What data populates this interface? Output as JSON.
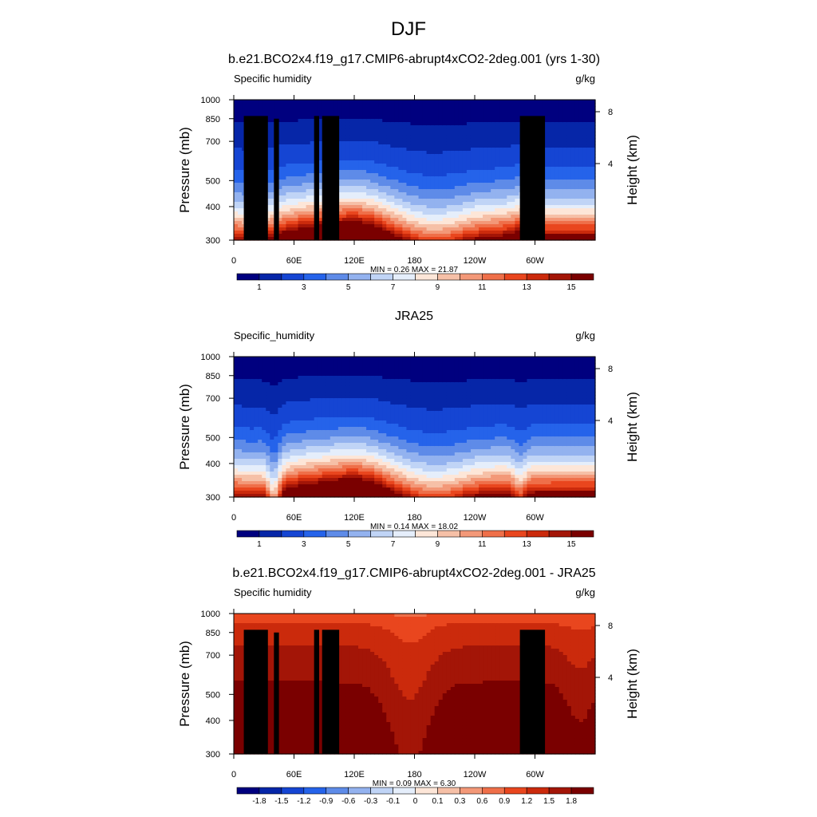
{
  "figure_title": "DJF",
  "colors": {
    "humidity_scale": [
      "#00007f",
      "#0626a8",
      "#1545d3",
      "#2563ea",
      "#5e8be8",
      "#93b2ef",
      "#c0d4f6",
      "#e5eefb",
      "#fde6d8",
      "#f6c0a7",
      "#f39878",
      "#ef6f49",
      "#e9461e",
      "#cb2a0c",
      "#a31507",
      "#7a0000"
    ],
    "difference_scale": [
      "#00007f",
      "#0626a8",
      "#1545d3",
      "#2563ea",
      "#5e8be8",
      "#93b2ef",
      "#c0d4f6",
      "#e5eefb",
      "#fde6d8",
      "#f6c0a7",
      "#f39878",
      "#ef6f49",
      "#e9461e",
      "#cb2a0c",
      "#a31507",
      "#7a0000"
    ],
    "topography": "#000000"
  },
  "chart_data": [
    {
      "type": "heatmap",
      "title": "b.e21.BCO2x4.f19_g17.CMIP6-abrupt4xCO2-2deg.001 (yrs 1-30)",
      "left_label": "Specific humidity",
      "right_label": "g/kg",
      "ylabel": "Pressure (mb)",
      "y2label": "Height (km)",
      "x_ticks": [
        "0",
        "60E",
        "120E",
        "180",
        "120W",
        "60W"
      ],
      "y_ticks": [
        "300",
        "400",
        "500",
        "700",
        "850",
        "1000"
      ],
      "y2_ticks": [
        "8",
        "4"
      ],
      "stats": "MIN =   0.26  MAX =  21.87",
      "colorbar_labels": [
        "1",
        "3",
        "5",
        "7",
        "9",
        "11",
        "13",
        "15"
      ],
      "xlim": [
        0,
        360
      ],
      "ylim": [
        1000,
        300
      ],
      "y_scale": "log",
      "field": "humidity",
      "surface_mode": "topo"
    },
    {
      "type": "heatmap",
      "title": "JRA25",
      "left_label": "Specific_humidity",
      "right_label": "g/kg",
      "ylabel": "Pressure (mb)",
      "y2label": "Height (km)",
      "x_ticks": [
        "0",
        "60E",
        "120E",
        "180",
        "120W",
        "60W"
      ],
      "y_ticks": [
        "300",
        "400",
        "500",
        "700",
        "850",
        "1000"
      ],
      "y2_ticks": [
        "8",
        "4"
      ],
      "stats": "MIN =   0.14  MAX =  18.02",
      "colorbar_labels": [
        "1",
        "3",
        "5",
        "7",
        "9",
        "11",
        "13",
        "15"
      ],
      "xlim": [
        0,
        360
      ],
      "ylim": [
        1000,
        300
      ],
      "y_scale": "log",
      "field": "humidity",
      "surface_mode": "dips"
    },
    {
      "type": "heatmap",
      "title": "b.e21.BCO2x4.f19_g17.CMIP6-abrupt4xCO2-2deg.001 - JRA25",
      "left_label": "Specific humidity",
      "right_label": "g/kg",
      "ylabel": "Pressure (mb)",
      "y2label": "Height (km)",
      "x_ticks": [
        "0",
        "60E",
        "120E",
        "180",
        "120W",
        "60W"
      ],
      "y_ticks": [
        "300",
        "400",
        "500",
        "700",
        "850",
        "1000"
      ],
      "y2_ticks": [
        "8",
        "4"
      ],
      "stats": "MIN =   0.09  MAX =   6.30",
      "colorbar_labels": [
        "-1.8",
        "-1.5",
        "-1.2",
        "-0.9",
        "-0.6",
        "-0.3",
        "-0.1",
        "0",
        "0.1",
        "0.3",
        "0.6",
        "0.9",
        "1.2",
        "1.5",
        "1.8"
      ],
      "xlim": [
        0,
        360
      ],
      "ylim": [
        1000,
        300
      ],
      "y_scale": "log",
      "field": "difference",
      "surface_mode": "topo"
    }
  ]
}
